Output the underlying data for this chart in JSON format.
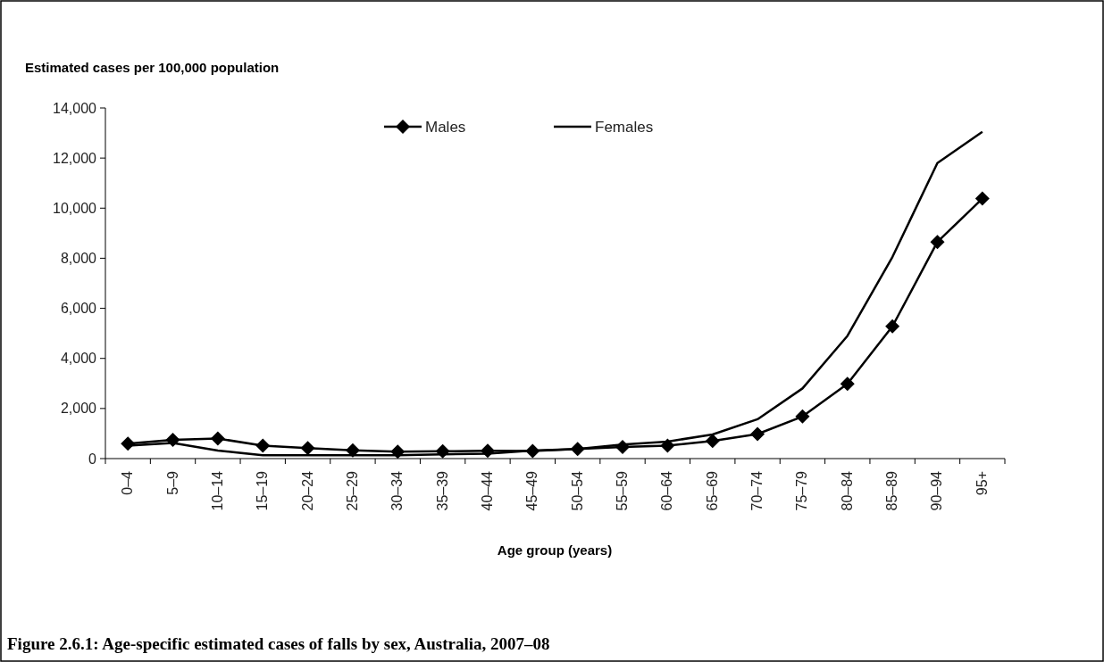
{
  "chart_data": {
    "type": "line",
    "title": "Figure 2.6.1: Age-specific estimated cases of falls by sex, Australia, 2007–08",
    "ylabel": "Estimated cases per 100,000 population",
    "xlabel": "Age group (years)",
    "categories": [
      "0–4",
      "5–9",
      "10–14",
      "15–19",
      "20–24",
      "25–29",
      "30–34",
      "35–39",
      "40–44",
      "45–49",
      "50–54",
      "55–59",
      "60–64",
      "65–69",
      "70–74",
      "75–79",
      "80–84",
      "85–89",
      "90–94",
      "95+"
    ],
    "series": [
      {
        "name": "Males",
        "color": "#000000",
        "marker": "diamond",
        "values": [
          600,
          750,
          800,
          520,
          420,
          330,
          280,
          290,
          310,
          300,
          380,
          460,
          520,
          700,
          980,
          1680,
          2980,
          5280,
          8650,
          10380
        ]
      },
      {
        "name": "Females",
        "color": "#000000",
        "marker": "none",
        "values": [
          520,
          620,
          320,
          130,
          130,
          130,
          130,
          170,
          200,
          320,
          380,
          560,
          680,
          960,
          1570,
          2800,
          4900,
          8050,
          11800,
          13050
        ]
      }
    ],
    "ylim": [
      0,
      14000
    ],
    "yticks": [
      {
        "value": 0,
        "label": "0"
      },
      {
        "value": 2000,
        "label": "2,000"
      },
      {
        "value": 4000,
        "label": "4,000"
      },
      {
        "value": 6000,
        "label": "6,000"
      },
      {
        "value": 8000,
        "label": "8,000"
      },
      {
        "value": 10000,
        "label": "10,000"
      },
      {
        "value": 12000,
        "label": "12,000"
      },
      {
        "value": 14000,
        "label": "14,000"
      }
    ],
    "grid": false,
    "legend": "top",
    "line_style": "solid"
  }
}
